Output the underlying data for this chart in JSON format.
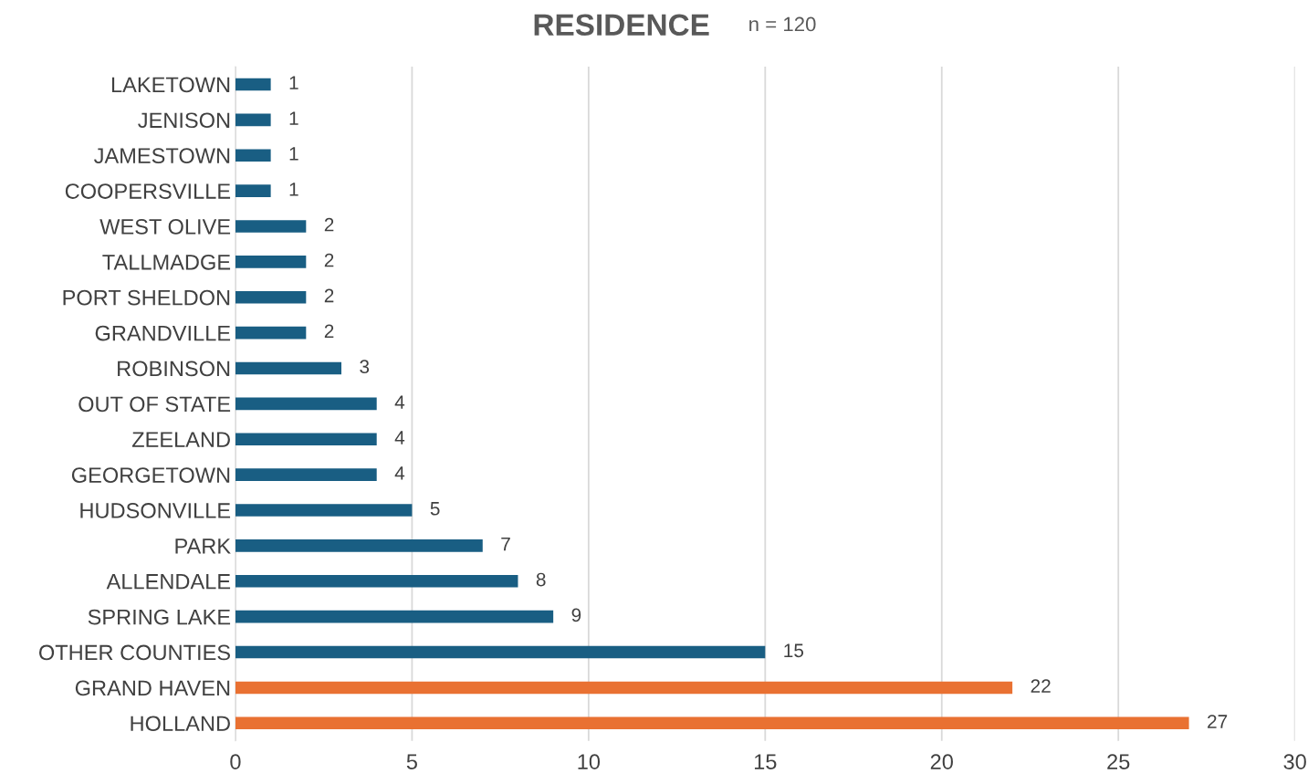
{
  "chart_data": {
    "type": "bar",
    "orientation": "horizontal",
    "title": "RESIDENCE",
    "subtitle": "n = 120",
    "categories": [
      "LAKETOWN",
      "JENISON",
      "JAMESTOWN",
      "COOPERSVILLE",
      "WEST OLIVE",
      "TALLMADGE",
      "PORT SHELDON",
      "GRANDVILLE",
      "ROBINSON",
      "OUT OF STATE",
      "ZEELAND",
      "GEORGETOWN",
      "HUDSONVILLE",
      "PARK",
      "ALLENDALE",
      "SPRING LAKE",
      "OTHER COUNTIES",
      "GRAND HAVEN",
      "HOLLAND"
    ],
    "values": [
      1,
      1,
      1,
      1,
      2,
      2,
      2,
      2,
      3,
      4,
      4,
      4,
      5,
      7,
      8,
      9,
      15,
      22,
      27
    ],
    "colors": [
      "#195e83",
      "#195e83",
      "#195e83",
      "#195e83",
      "#195e83",
      "#195e83",
      "#195e83",
      "#195e83",
      "#195e83",
      "#195e83",
      "#195e83",
      "#195e83",
      "#195e83",
      "#195e83",
      "#195e83",
      "#195e83",
      "#195e83",
      "#e97132",
      "#e97132"
    ],
    "xlim": [
      0,
      30
    ],
    "xticks": [
      0,
      5,
      10,
      15,
      20,
      25,
      30
    ],
    "grid": "x",
    "data_labels": true
  }
}
